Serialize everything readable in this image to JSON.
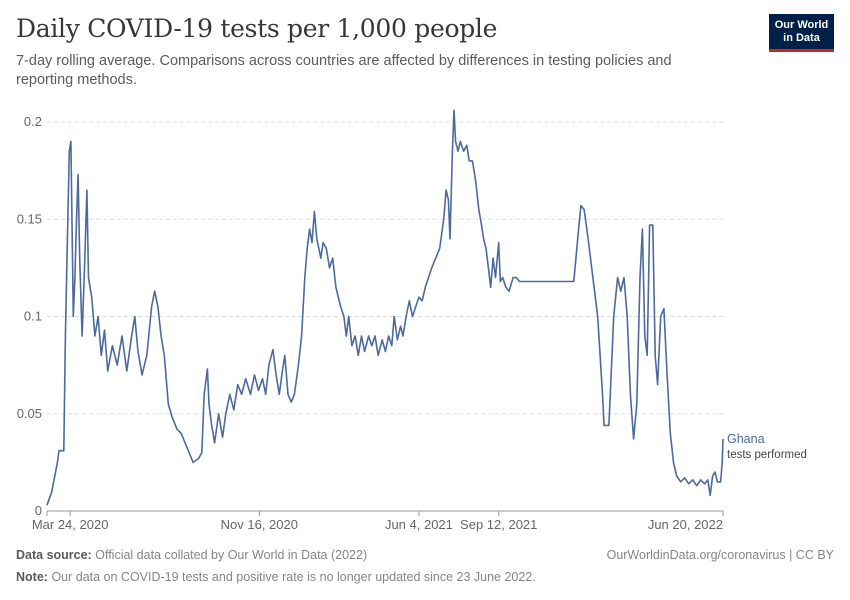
{
  "header": {
    "title": "Daily COVID-19 tests per 1,000 people",
    "subtitle": "7-day rolling average. Comparisons across countries are affected by differences in testing policies and reporting methods."
  },
  "logo": {
    "line1": "Our World",
    "line2": "in Data",
    "bg": "#002147",
    "accent": "#ce261e"
  },
  "footer": {
    "source_label": "Data source:",
    "source_text": "Official data collated by Our World in Data (2022)",
    "link": "OurWorldinData.org/coronavirus | CC BY",
    "note_label": "Note:",
    "note_text": "Our data on COVID-19 tests and positive rate is no longer updated since 23 June 2022."
  },
  "chart_data": {
    "type": "line",
    "ylim": [
      0,
      0.2
    ],
    "yticks": [
      {
        "value": 0,
        "label": "0"
      },
      {
        "value": 0.05,
        "label": "0.05"
      },
      {
        "value": 0.1,
        "label": "0.1"
      },
      {
        "value": 0.15,
        "label": "0.15"
      },
      {
        "value": 0.2,
        "label": "0.2"
      }
    ],
    "xlim": [
      "2020-02-24",
      "2022-06-20"
    ],
    "xticks": [
      {
        "value": "2020-03-24",
        "label": "Mar 24, 2020"
      },
      {
        "value": "2020-11-16",
        "label": "Nov 16, 2020"
      },
      {
        "value": "2021-06-04",
        "label": "Jun 4, 2021"
      },
      {
        "value": "2021-09-12",
        "label": "Sep 12, 2021"
      },
      {
        "value": "2022-06-20",
        "label": "Jun 20, 2022"
      }
    ],
    "grid": true,
    "line_color": "#4c6a9c",
    "series": [
      {
        "name": "Ghana",
        "label_sub": "tests performed",
        "points": [
          [
            "2020-02-24",
            0.003
          ],
          [
            "2020-03-01",
            0.01
          ],
          [
            "2020-03-08",
            0.025
          ],
          [
            "2020-03-10",
            0.031
          ],
          [
            "2020-03-16",
            0.031
          ],
          [
            "2020-03-18",
            0.09
          ],
          [
            "2020-03-20",
            0.13
          ],
          [
            "2020-03-23",
            0.185
          ],
          [
            "2020-03-25",
            0.19
          ],
          [
            "2020-03-28",
            0.1
          ],
          [
            "2020-03-30",
            0.12
          ],
          [
            "2020-04-01",
            0.15
          ],
          [
            "2020-04-03",
            0.173
          ],
          [
            "2020-04-05",
            0.13
          ],
          [
            "2020-04-08",
            0.09
          ],
          [
            "2020-04-11",
            0.125
          ],
          [
            "2020-04-14",
            0.165
          ],
          [
            "2020-04-16",
            0.12
          ],
          [
            "2020-04-20",
            0.11
          ],
          [
            "2020-04-24",
            0.09
          ],
          [
            "2020-04-28",
            0.1
          ],
          [
            "2020-05-02",
            0.08
          ],
          [
            "2020-05-06",
            0.093
          ],
          [
            "2020-05-10",
            0.072
          ],
          [
            "2020-05-16",
            0.085
          ],
          [
            "2020-05-22",
            0.075
          ],
          [
            "2020-05-28",
            0.09
          ],
          [
            "2020-06-03",
            0.072
          ],
          [
            "2020-06-09",
            0.09
          ],
          [
            "2020-06-13",
            0.1
          ],
          [
            "2020-06-17",
            0.082
          ],
          [
            "2020-06-22",
            0.07
          ],
          [
            "2020-06-28",
            0.08
          ],
          [
            "2020-07-04",
            0.105
          ],
          [
            "2020-07-08",
            0.113
          ],
          [
            "2020-07-12",
            0.105
          ],
          [
            "2020-07-16",
            0.09
          ],
          [
            "2020-07-20",
            0.08
          ],
          [
            "2020-07-25",
            0.055
          ],
          [
            "2020-07-30",
            0.048
          ],
          [
            "2020-08-05",
            0.042
          ],
          [
            "2020-08-10",
            0.04
          ],
          [
            "2020-08-15",
            0.035
          ],
          [
            "2020-08-20",
            0.03
          ],
          [
            "2020-08-25",
            0.025
          ],
          [
            "2020-09-01",
            0.027
          ],
          [
            "2020-09-05",
            0.03
          ],
          [
            "2020-09-08",
            0.06
          ],
          [
            "2020-09-12",
            0.073
          ],
          [
            "2020-09-14",
            0.055
          ],
          [
            "2020-09-17",
            0.045
          ],
          [
            "2020-09-21",
            0.035
          ],
          [
            "2020-09-26",
            0.05
          ],
          [
            "2020-10-01",
            0.038
          ],
          [
            "2020-10-05",
            0.05
          ],
          [
            "2020-10-10",
            0.06
          ],
          [
            "2020-10-15",
            0.052
          ],
          [
            "2020-10-20",
            0.065
          ],
          [
            "2020-10-25",
            0.06
          ],
          [
            "2020-10-30",
            0.068
          ],
          [
            "2020-11-05",
            0.06
          ],
          [
            "2020-11-10",
            0.07
          ],
          [
            "2020-11-15",
            0.062
          ],
          [
            "2020-11-20",
            0.068
          ],
          [
            "2020-11-24",
            0.06
          ],
          [
            "2020-11-28",
            0.075
          ],
          [
            "2020-12-03",
            0.083
          ],
          [
            "2020-12-07",
            0.07
          ],
          [
            "2020-12-11",
            0.06
          ],
          [
            "2020-12-15",
            0.072
          ],
          [
            "2020-12-18",
            0.08
          ],
          [
            "2020-12-22",
            0.06
          ],
          [
            "2020-12-26",
            0.056
          ],
          [
            "2020-12-30",
            0.06
          ],
          [
            "2021-01-04",
            0.075
          ],
          [
            "2021-01-08",
            0.09
          ],
          [
            "2021-01-12",
            0.12
          ],
          [
            "2021-01-15",
            0.135
          ],
          [
            "2021-01-18",
            0.145
          ],
          [
            "2021-01-21",
            0.138
          ],
          [
            "2021-01-24",
            0.154
          ],
          [
            "2021-01-27",
            0.14
          ],
          [
            "2021-02-01",
            0.13
          ],
          [
            "2021-02-04",
            0.138
          ],
          [
            "2021-02-08",
            0.135
          ],
          [
            "2021-02-12",
            0.125
          ],
          [
            "2021-02-16",
            0.13
          ],
          [
            "2021-02-20",
            0.115
          ],
          [
            "2021-02-26",
            0.105
          ],
          [
            "2021-03-02",
            0.1
          ],
          [
            "2021-03-05",
            0.09
          ],
          [
            "2021-03-08",
            0.1
          ],
          [
            "2021-03-12",
            0.085
          ],
          [
            "2021-03-16",
            0.09
          ],
          [
            "2021-03-20",
            0.08
          ],
          [
            "2021-03-24",
            0.09
          ],
          [
            "2021-03-28",
            0.082
          ],
          [
            "2021-04-02",
            0.09
          ],
          [
            "2021-04-06",
            0.085
          ],
          [
            "2021-04-10",
            0.09
          ],
          [
            "2021-04-14",
            0.08
          ],
          [
            "2021-04-19",
            0.088
          ],
          [
            "2021-04-23",
            0.082
          ],
          [
            "2021-04-27",
            0.09
          ],
          [
            "2021-05-01",
            0.085
          ],
          [
            "2021-05-04",
            0.1
          ],
          [
            "2021-05-08",
            0.088
          ],
          [
            "2021-05-12",
            0.095
          ],
          [
            "2021-05-15",
            0.09
          ],
          [
            "2021-05-19",
            0.1
          ],
          [
            "2021-05-23",
            0.108
          ],
          [
            "2021-05-27",
            0.1
          ],
          [
            "2021-05-31",
            0.105
          ],
          [
            "2021-06-04",
            0.11
          ],
          [
            "2021-06-08",
            0.108
          ],
          [
            "2021-06-12",
            0.115
          ],
          [
            "2021-06-16",
            0.12
          ],
          [
            "2021-06-20",
            0.125
          ],
          [
            "2021-06-25",
            0.13
          ],
          [
            "2021-06-30",
            0.135
          ],
          [
            "2021-07-05",
            0.15
          ],
          [
            "2021-07-08",
            0.165
          ],
          [
            "2021-07-11",
            0.16
          ],
          [
            "2021-07-13",
            0.14
          ],
          [
            "2021-07-16",
            0.185
          ],
          [
            "2021-07-18",
            0.206
          ],
          [
            "2021-07-20",
            0.19
          ],
          [
            "2021-07-23",
            0.185
          ],
          [
            "2021-07-26",
            0.19
          ],
          [
            "2021-07-30",
            0.185
          ],
          [
            "2021-08-03",
            0.188
          ],
          [
            "2021-08-06",
            0.18
          ],
          [
            "2021-08-10",
            0.18
          ],
          [
            "2021-08-14",
            0.17
          ],
          [
            "2021-08-18",
            0.155
          ],
          [
            "2021-08-21",
            0.148
          ],
          [
            "2021-08-24",
            0.14
          ],
          [
            "2021-08-27",
            0.135
          ],
          [
            "2021-08-30",
            0.125
          ],
          [
            "2021-09-02",
            0.115
          ],
          [
            "2021-09-05",
            0.13
          ],
          [
            "2021-09-08",
            0.12
          ],
          [
            "2021-09-12",
            0.138
          ],
          [
            "2021-09-14",
            0.118
          ],
          [
            "2021-09-17",
            0.12
          ],
          [
            "2021-09-21",
            0.115
          ],
          [
            "2021-09-25",
            0.113
          ],
          [
            "2021-09-30",
            0.12
          ],
          [
            "2021-10-04",
            0.12
          ],
          [
            "2021-10-08",
            0.118
          ],
          [
            "2021-12-15",
            0.118
          ],
          [
            "2021-12-20",
            0.14
          ],
          [
            "2021-12-24",
            0.157
          ],
          [
            "2021-12-28",
            0.155
          ],
          [
            "2022-01-02",
            0.14
          ],
          [
            "2022-01-08",
            0.12
          ],
          [
            "2022-01-14",
            0.1
          ],
          [
            "2022-01-20",
            0.06
          ],
          [
            "2022-01-22",
            0.044
          ],
          [
            "2022-01-28",
            0.044
          ],
          [
            "2022-02-03",
            0.1
          ],
          [
            "2022-02-08",
            0.12
          ],
          [
            "2022-02-12",
            0.113
          ],
          [
            "2022-02-16",
            0.12
          ],
          [
            "2022-02-20",
            0.1
          ],
          [
            "2022-02-24",
            0.06
          ],
          [
            "2022-02-28",
            0.037
          ],
          [
            "2022-03-04",
            0.055
          ],
          [
            "2022-03-08",
            0.12
          ],
          [
            "2022-03-11",
            0.145
          ],
          [
            "2022-03-14",
            0.09
          ],
          [
            "2022-03-17",
            0.08
          ],
          [
            "2022-03-20",
            0.147
          ],
          [
            "2022-03-24",
            0.147
          ],
          [
            "2022-03-27",
            0.08
          ],
          [
            "2022-03-30",
            0.065
          ],
          [
            "2022-04-03",
            0.1
          ],
          [
            "2022-04-07",
            0.104
          ],
          [
            "2022-04-11",
            0.07
          ],
          [
            "2022-04-15",
            0.04
          ],
          [
            "2022-04-19",
            0.025
          ],
          [
            "2022-04-23",
            0.018
          ],
          [
            "2022-04-28",
            0.015
          ],
          [
            "2022-05-03",
            0.017
          ],
          [
            "2022-05-08",
            0.014
          ],
          [
            "2022-05-13",
            0.016
          ],
          [
            "2022-05-18",
            0.013
          ],
          [
            "2022-05-23",
            0.016
          ],
          [
            "2022-05-28",
            0.014
          ],
          [
            "2022-06-01",
            0.016
          ],
          [
            "2022-06-04",
            0.008
          ],
          [
            "2022-06-07",
            0.018
          ],
          [
            "2022-06-10",
            0.02
          ],
          [
            "2022-06-13",
            0.015
          ],
          [
            "2022-06-17",
            0.015
          ],
          [
            "2022-06-19",
            0.025
          ],
          [
            "2022-06-20",
            0.037
          ]
        ]
      }
    ]
  }
}
